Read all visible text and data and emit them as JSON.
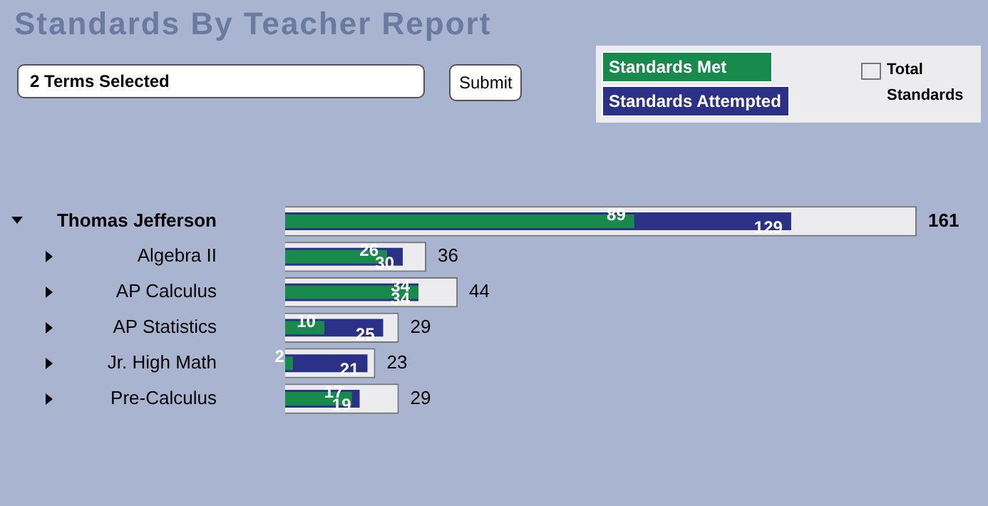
{
  "chart_data": {
    "type": "bar",
    "orientation": "horizontal",
    "title": "Standards By Teacher Report",
    "annotations": [
      "2 Terms Selected",
      "Submit"
    ],
    "categories": [
      "Thomas Jefferson",
      "Algebra II",
      "AP Calculus",
      "AP Statistics",
      "Jr. High Math",
      "Pre-Calculus"
    ],
    "series": [
      {
        "name": "Standards Met",
        "color": "#178a4c",
        "values": [
          89,
          26,
          34,
          10,
          2,
          17
        ]
      },
      {
        "name": "Standards Attempted",
        "color": "#2b3187",
        "values": [
          129,
          30,
          34,
          25,
          21,
          19
        ]
      },
      {
        "name": "Total Standards",
        "color": "#ececee",
        "values": [
          161,
          36,
          44,
          29,
          23,
          29
        ]
      }
    ],
    "xlim": [
      0,
      161
    ],
    "tick_labels": "y",
    "data_labels": true,
    "legend": "top right",
    "grid": false
  }
}
